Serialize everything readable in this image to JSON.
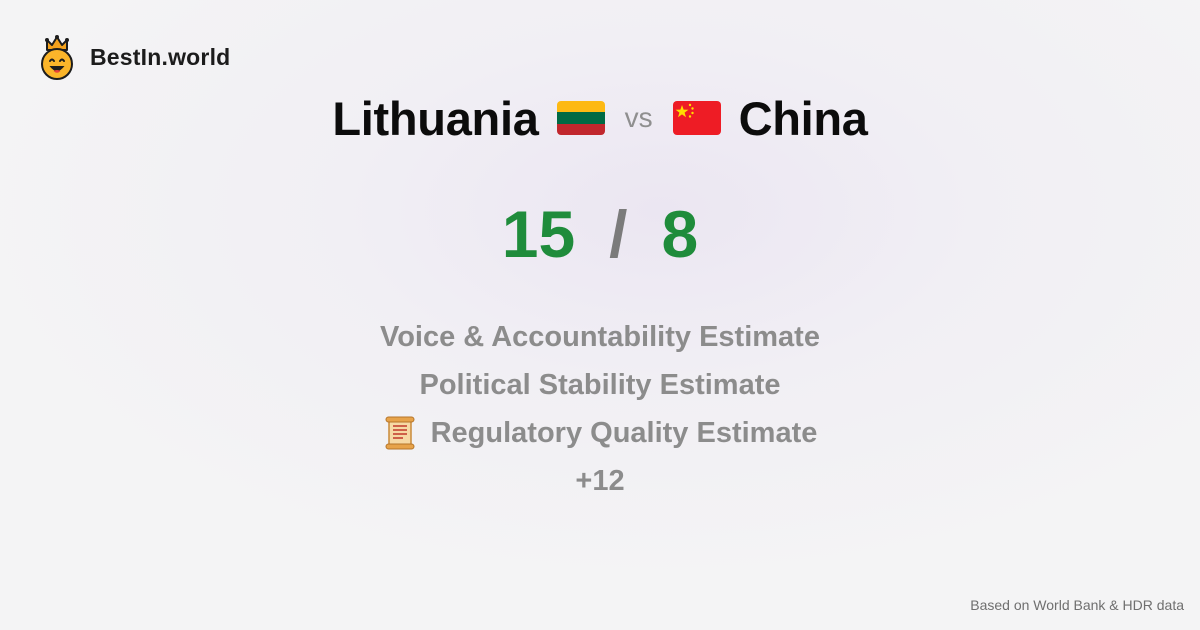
{
  "brand": {
    "name": "BestIn.world",
    "logo_icon": "crowned-smiley-icon"
  },
  "comparison": {
    "left_country": "Lithuania",
    "right_country": "China",
    "vs_label": "vs",
    "left_flag": {
      "icon": "lithuania-flag-icon",
      "colors": [
        "#fdb913",
        "#006a44",
        "#c1272d"
      ]
    },
    "right_flag": {
      "icon": "china-flag-icon",
      "colors": [
        "#ee1c25",
        "#ffde00"
      ]
    }
  },
  "score": {
    "left": "15",
    "separator": "/",
    "right": "8",
    "color": "#1f8c3b"
  },
  "metrics": [
    {
      "label": "Voice & Accountability Estimate",
      "icon": ""
    },
    {
      "label": "Political Stability Estimate",
      "icon": ""
    },
    {
      "label": "Regulatory Quality Estimate",
      "icon": "scroll-icon"
    }
  ],
  "more_label": "+12",
  "footer": {
    "source": "Based on World Bank & HDR data"
  }
}
